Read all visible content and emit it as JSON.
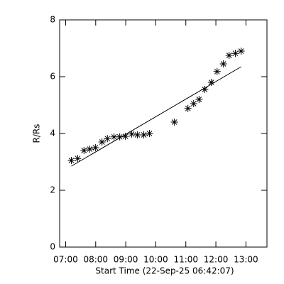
{
  "chart_data": {
    "type": "scatter",
    "xlabel": "Start Time (22-Sep-25 06:42:07)",
    "ylabel": "R/Rs",
    "x": [
      7.19,
      7.4,
      7.61,
      7.8,
      7.99,
      8.21,
      8.39,
      8.61,
      8.8,
      8.99,
      9.2,
      9.39,
      9.6,
      9.79,
      10.62,
      11.07,
      11.26,
      11.44,
      11.63,
      11.85,
      12.04,
      12.25,
      12.44,
      12.65,
      12.84
    ],
    "values": [
      3.05,
      3.12,
      3.4,
      3.45,
      3.5,
      3.7,
      3.82,
      3.88,
      3.88,
      3.9,
      3.98,
      3.95,
      3.95,
      4.0,
      4.4,
      4.88,
      5.05,
      5.2,
      5.55,
      5.8,
      6.18,
      6.45,
      6.75,
      6.82,
      6.9
    ],
    "fit": {
      "x": [
        7.19,
        12.84
      ],
      "y": [
        2.85,
        6.35
      ]
    },
    "color": "#000000",
    "xlim": [
      6.8,
      13.7
    ],
    "ylim": [
      0,
      8
    ],
    "xticks": [
      {
        "value": 7,
        "label": "07:00"
      },
      {
        "value": 8,
        "label": "08:00"
      },
      {
        "value": 9,
        "label": "09:00"
      },
      {
        "value": 10,
        "label": "10:00"
      },
      {
        "value": 11,
        "label": "11:00"
      },
      {
        "value": 12,
        "label": "12:00"
      },
      {
        "value": 13,
        "label": "13:00"
      }
    ],
    "yticks": [
      0,
      2,
      4,
      6,
      8
    ]
  }
}
